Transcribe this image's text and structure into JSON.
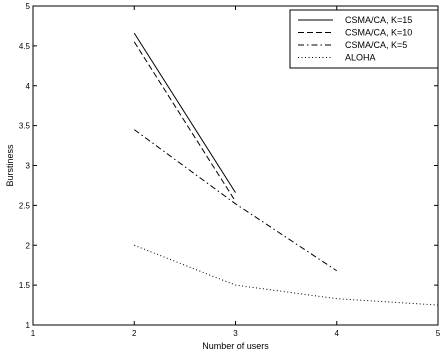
{
  "chart_data": {
    "type": "line",
    "title": "",
    "xlabel": "Number of users",
    "ylabel": "Burstiness",
    "xlim": [
      1,
      5
    ],
    "ylim": [
      1,
      5
    ],
    "xticks": [
      1,
      2,
      3,
      4,
      5
    ],
    "yticks": [
      1,
      1.5,
      2,
      2.5,
      3,
      3.5,
      4,
      4.5,
      5
    ],
    "grid": false,
    "legend_position": "top-right",
    "series": [
      {
        "name": "CSMA/CA, K=15",
        "style": "solid",
        "x": [
          2,
          3
        ],
        "y": [
          4.66,
          2.66
        ]
      },
      {
        "name": "CSMA/CA, K=10",
        "style": "dashed",
        "x": [
          2,
          3
        ],
        "y": [
          4.55,
          2.55
        ]
      },
      {
        "name": "CSMA/CA, K=5",
        "style": "dashdot",
        "x": [
          2,
          3,
          4
        ],
        "y": [
          3.45,
          2.52,
          1.68
        ]
      },
      {
        "name": "ALOHA",
        "style": "dotted",
        "x": [
          2,
          3,
          4,
          5
        ],
        "y": [
          2.0,
          1.5,
          1.33,
          1.25
        ]
      }
    ]
  }
}
